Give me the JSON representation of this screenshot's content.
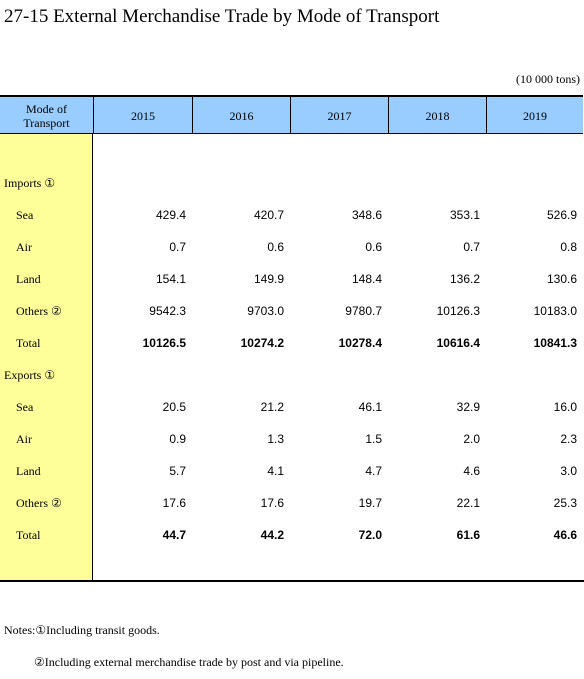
{
  "header": {
    "title": "27-15  External Merchandise Trade by Mode of Transport",
    "unit": "(10 000 tons)"
  },
  "table": {
    "corner": "Mode of Transport",
    "columns": [
      "2015",
      "2016",
      "2017",
      "2018",
      "2019"
    ],
    "sections": [
      {
        "heading": "Imports ①",
        "rows": [
          {
            "label": "Sea",
            "values": [
              "429.4",
              "420.7",
              "348.6",
              "353.1",
              "526.9"
            ]
          },
          {
            "label": "Air",
            "values": [
              "0.7",
              "0.6",
              "0.6",
              "0.7",
              "0.8"
            ]
          },
          {
            "label": "Land",
            "values": [
              "154.1",
              "149.9",
              "148.4",
              "136.2",
              "130.6"
            ]
          },
          {
            "label": "Others ②",
            "values": [
              "9542.3",
              "9703.0",
              "9780.7",
              "10126.3",
              "10183.0"
            ]
          }
        ],
        "total": {
          "label": "Total",
          "values": [
            "10126.5",
            "10274.2",
            "10278.4",
            "10616.4",
            "10841.3"
          ]
        }
      },
      {
        "heading": "Exports ①",
        "rows": [
          {
            "label": "Sea",
            "values": [
              "20.5",
              "21.2",
              "46.1",
              "32.9",
              "16.0"
            ]
          },
          {
            "label": "Air",
            "values": [
              "0.9",
              "1.3",
              "1.5",
              "2.0",
              "2.3"
            ]
          },
          {
            "label": "Land",
            "values": [
              "5.7",
              "4.1",
              "4.7",
              "4.6",
              "3.0"
            ]
          },
          {
            "label": "Others ②",
            "values": [
              "17.6",
              "17.6",
              "19.7",
              "22.1",
              "25.3"
            ]
          }
        ],
        "total": {
          "label": "Total",
          "values": [
            "44.7",
            "44.2",
            "72.0",
            "61.6",
            "46.6"
          ]
        }
      }
    ]
  },
  "notes": [
    "Notes:①Including transit goods.",
    "②Including external merchandise trade by post and via pipeline."
  ]
}
